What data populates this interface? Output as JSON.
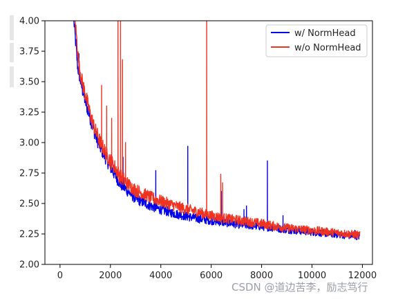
{
  "watermark": "CSDN @道边苦李，励志笃行",
  "chart_data": {
    "type": "line",
    "title": "",
    "xlabel": "",
    "ylabel": "",
    "xlim": [
      -600,
      12400
    ],
    "ylim": [
      2.0,
      4.0
    ],
    "x_ticks": [
      0,
      2000,
      4000,
      6000,
      8000,
      10000,
      12000
    ],
    "y_ticks": [
      2.0,
      2.25,
      2.5,
      2.75,
      3.0,
      3.25,
      3.5,
      3.75,
      4.0
    ],
    "x_tick_labels": [
      "0",
      "2000",
      "4000",
      "6000",
      "8000",
      "10000",
      "12000"
    ],
    "y_tick_labels": [
      "2.00",
      "2.25",
      "2.50",
      "2.75",
      "3.00",
      "3.25",
      "3.50",
      "3.75",
      "4.00"
    ],
    "grid": false,
    "legend_position": "top-right",
    "series": [
      {
        "name": "w/ NormHead",
        "color": "#0000ee",
        "x": [
          550,
          700,
          850,
          1000,
          1200,
          1400,
          1600,
          1800,
          2000,
          2200,
          2400,
          2600,
          2800,
          3000,
          3300,
          3600,
          4000,
          4500,
          5000,
          5500,
          6000,
          6500,
          7000,
          7500,
          8000,
          8500,
          9000,
          9500,
          10000,
          10500,
          11000,
          11500,
          11900
        ],
        "values": [
          4.0,
          3.62,
          3.47,
          3.34,
          3.2,
          3.06,
          2.96,
          2.88,
          2.8,
          2.73,
          2.66,
          2.62,
          2.58,
          2.54,
          2.51,
          2.48,
          2.45,
          2.42,
          2.395,
          2.375,
          2.36,
          2.345,
          2.33,
          2.32,
          2.31,
          2.3,
          2.285,
          2.275,
          2.265,
          2.255,
          2.245,
          2.235,
          2.23
        ],
        "noise": 0.04,
        "spikes": [
          [
            750,
            3.73
          ],
          [
            2500,
            2.88
          ],
          [
            3800,
            2.77
          ],
          [
            5070,
            2.97
          ],
          [
            6400,
            2.6
          ],
          [
            7300,
            2.45
          ],
          [
            7400,
            2.48
          ],
          [
            8230,
            2.85
          ],
          [
            8850,
            2.4
          ],
          [
            11700,
            2.28
          ]
        ]
      },
      {
        "name": "w/o NormHead",
        "color": "#ee3322",
        "x": [
          600,
          750,
          900,
          1050,
          1200,
          1400,
          1600,
          1800,
          2000,
          2200,
          2400,
          2600,
          2800,
          3000,
          3300,
          3600,
          4000,
          4500,
          5000,
          5500,
          6000,
          6500,
          7000,
          7500,
          8000,
          8500,
          9000,
          9500,
          10000,
          10500,
          11000,
          11500,
          11900
        ],
        "values": [
          4.0,
          3.63,
          3.48,
          3.36,
          3.23,
          3.1,
          3.0,
          2.92,
          2.85,
          2.79,
          2.72,
          2.68,
          2.64,
          2.61,
          2.58,
          2.55,
          2.52,
          2.485,
          2.455,
          2.43,
          2.4,
          2.38,
          2.365,
          2.35,
          2.335,
          2.315,
          2.3,
          2.29,
          2.28,
          2.27,
          2.26,
          2.25,
          2.24
        ],
        "noise": 0.045,
        "spikes": [
          [
            1650,
            3.47
          ],
          [
            1850,
            3.3
          ],
          [
            2050,
            3.2
          ],
          [
            2300,
            4.0
          ],
          [
            2400,
            4.0
          ],
          [
            2480,
            3.68
          ],
          [
            2600,
            3.0
          ],
          [
            5820,
            4.0
          ],
          [
            6380,
            2.74
          ],
          [
            6450,
            2.67
          ]
        ]
      }
    ]
  }
}
